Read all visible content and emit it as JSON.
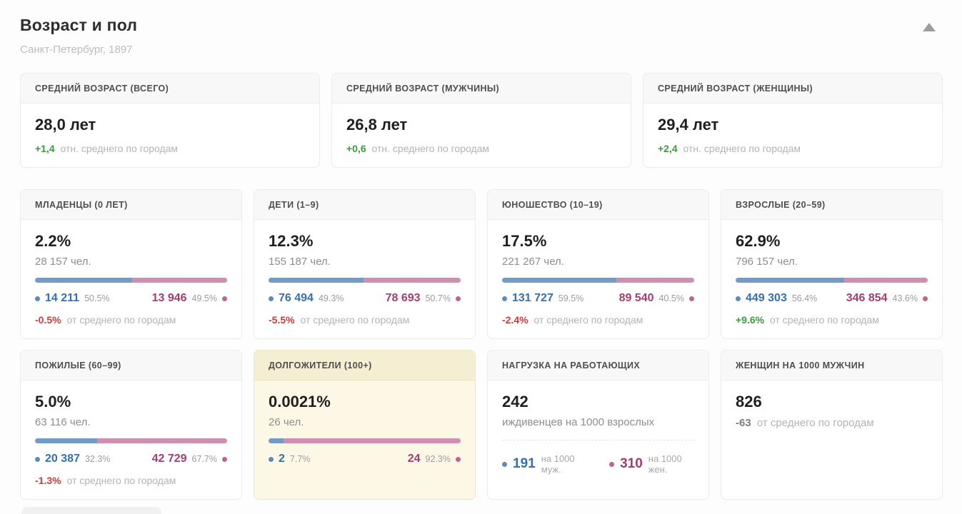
{
  "page": {
    "title": "Возраст и пол",
    "subtitle": "Санкт-Петербург, 1897"
  },
  "colors": {
    "male_text": "#3570ae",
    "male_bar": "#6f9cc9",
    "female_text": "#a63d6f",
    "female_bar": "#d08fb0",
    "positive_delta": "#3d9b40",
    "negative_delta": "#cf3b3b",
    "highlight_card_bg": "#fdf8e6"
  },
  "summary_cards": [
    {
      "label": "СРЕДНИЙ ВОЗРАСТ (ВСЕГО)",
      "value": "28,0 лет",
      "delta": "+1,4",
      "note": "отн. среднего по городам"
    },
    {
      "label": "СРЕДНИЙ ВОЗРАСТ (МУЖЧИНЫ)",
      "value": "26,8 лет",
      "delta": "+0,6",
      "note": "отн. среднего по городам"
    },
    {
      "label": "СРЕДНИЙ ВОЗРАСТ (ЖЕНЩИНЫ)",
      "value": "29,4 лет",
      "delta": "+2,4",
      "note": "отн. среднего по городам"
    }
  ],
  "age_cards": [
    {
      "label": "МЛАДЕНЦЫ (0 ЛЕТ)",
      "percent": "2.2%",
      "count": "28 157 чел.",
      "male_value": "14 211",
      "male_pct": "50.5%",
      "male_bar": 50.5,
      "female_value": "13 946",
      "female_pct": "49.5%",
      "delta": "-0.5%",
      "delta_note": "от среднего по городам"
    },
    {
      "label": "ДЕТИ (1–9)",
      "percent": "12.3%",
      "count": "155 187 чел.",
      "male_value": "76 494",
      "male_pct": "49.3%",
      "male_bar": 49.3,
      "female_value": "78 693",
      "female_pct": "50.7%",
      "delta": "-5.5%",
      "delta_note": "от среднего по городам"
    },
    {
      "label": "ЮНОШЕСТВО (10–19)",
      "percent": "17.5%",
      "count": "221 267 чел.",
      "male_value": "131 727",
      "male_pct": "59.5%",
      "male_bar": 59.5,
      "female_value": "89 540",
      "female_pct": "40.5%",
      "delta": "-2.4%",
      "delta_note": "от среднего по городам"
    },
    {
      "label": "ВЗРОСЛЫЕ (20–59)",
      "percent": "62.9%",
      "count": "796 157 чел.",
      "male_value": "449 303",
      "male_pct": "56.4%",
      "male_bar": 56.4,
      "female_value": "346 854",
      "female_pct": "43.6%",
      "delta": "+9.6%",
      "delta_note": "от среднего по городам"
    },
    {
      "label": "ПОЖИЛЫЕ (60–99)",
      "percent": "5.0%",
      "count": "63 116 чел.",
      "male_value": "20 387",
      "male_pct": "32.3%",
      "male_bar": 32.3,
      "female_value": "42 729",
      "female_pct": "67.7%",
      "delta": "-1.3%",
      "delta_note": "от среднего по городам"
    },
    {
      "label": "ДОЛГОЖИТЕЛИ (100+)",
      "percent": "0.0021%",
      "count": "26 чел.",
      "male_value": "2",
      "male_pct": "7.7%",
      "male_bar": 7.7,
      "female_value": "24",
      "female_pct": "92.3%"
    }
  ],
  "dependency_card": {
    "label": "НАГРУЗКА НА РАБОТАЮЩИХ",
    "value": "242",
    "sub": "иждивенцев на 1000 взрослых",
    "male_value": "191",
    "male_note": "на 1000 муж.",
    "female_value": "310",
    "female_note": "на 1000 жен."
  },
  "ratio_card": {
    "label": "ЖЕНЩИН НА 1000 МУЖЧИН",
    "value": "826",
    "delta": "-63",
    "note": "от среднего по городам"
  }
}
